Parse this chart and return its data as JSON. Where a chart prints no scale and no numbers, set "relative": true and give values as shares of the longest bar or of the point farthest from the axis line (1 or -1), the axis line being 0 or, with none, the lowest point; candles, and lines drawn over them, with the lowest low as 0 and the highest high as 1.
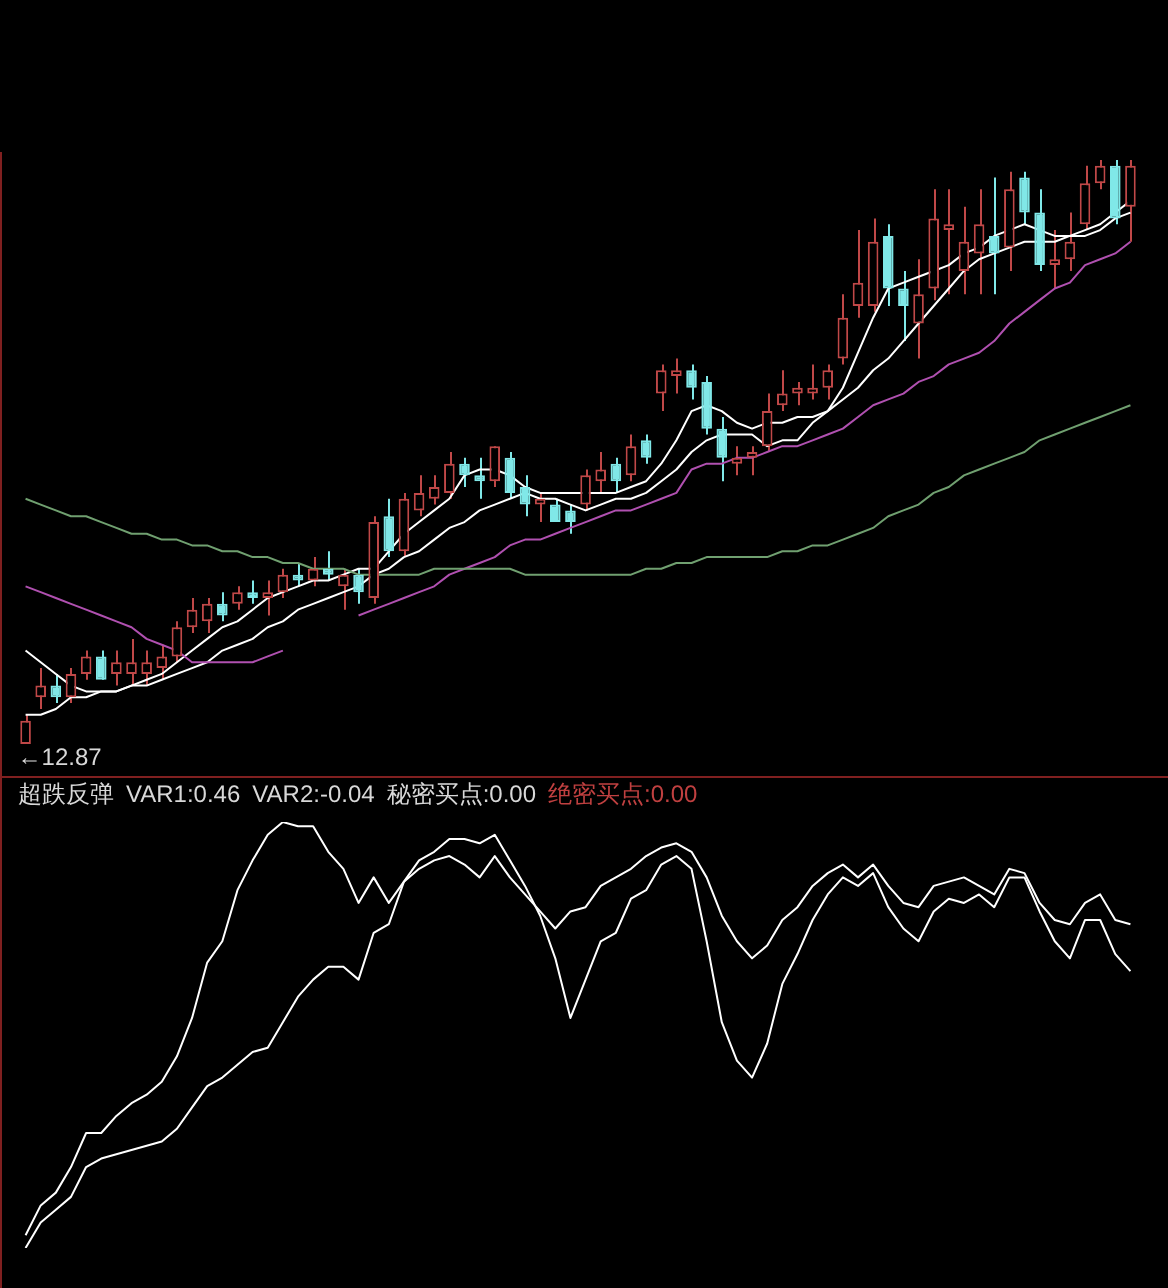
{
  "chart_data": [
    {
      "type": "candlestick",
      "relative": true,
      "categories": [
        null,
        null,
        null,
        null,
        null,
        null,
        null,
        null,
        null,
        null,
        null,
        null,
        null,
        null,
        null,
        null,
        null,
        null,
        null,
        null,
        null,
        null,
        null,
        null,
        null,
        null,
        null,
        null,
        null,
        null,
        null,
        null,
        null,
        null,
        null,
        null,
        null,
        null,
        null,
        null,
        null,
        null,
        null,
        null,
        null,
        null,
        null,
        null,
        null,
        null,
        null,
        null,
        null,
        null,
        null,
        null,
        null,
        null,
        null,
        null,
        null,
        null,
        null,
        null,
        null,
        null,
        null,
        null,
        null,
        null,
        null,
        null,
        null,
        null
      ],
      "annotations": [
        "←12.87"
      ],
      "series": [
        {
          "type": "line",
          "color": "#70a070",
          "values": [
            0.42,
            0.41,
            0.4,
            0.39,
            0.39,
            0.38,
            0.37,
            0.36,
            0.36,
            0.35,
            0.35,
            0.34,
            0.34,
            0.33,
            0.33,
            0.32,
            0.32,
            0.31,
            0.31,
            0.3,
            0.3,
            0.3,
            0.29,
            0.29,
            0.29,
            0.29,
            0.29,
            0.3,
            0.3,
            0.3,
            0.3,
            0.3,
            0.3,
            0.29,
            0.29,
            0.29,
            0.29,
            0.29,
            0.29,
            0.29,
            0.29,
            0.3,
            0.3,
            0.31,
            0.31,
            0.32,
            0.32,
            0.32,
            0.32,
            0.32,
            0.33,
            0.33,
            0.34,
            0.34,
            0.35,
            0.36,
            0.37,
            0.39,
            0.4,
            0.41,
            0.43,
            0.44,
            0.46,
            0.47,
            0.48,
            0.49,
            0.5,
            0.52,
            0.53,
            0.54,
            0.55,
            0.56,
            0.57,
            0.58
          ]
        },
        {
          "type": "line",
          "color": "#b050b0",
          "values": [
            0.27,
            0.26,
            0.25,
            0.24,
            0.23,
            0.22,
            0.21,
            0.2,
            0.18,
            0.17,
            0.16,
            0.14,
            0.14,
            0.14,
            0.14,
            0.14,
            0.15,
            0.16,
            null,
            null,
            null,
            null,
            0.22,
            0.23,
            0.24,
            0.25,
            0.26,
            0.27,
            0.29,
            0.3,
            0.31,
            0.32,
            0.34,
            0.35,
            0.35,
            0.36,
            0.37,
            0.38,
            0.39,
            0.4,
            0.4,
            0.41,
            0.42,
            0.43,
            0.47,
            0.48,
            0.48,
            0.49,
            0.49,
            0.5,
            0.51,
            0.51,
            0.52,
            0.53,
            0.54,
            0.56,
            0.58,
            0.59,
            0.6,
            0.62,
            0.63,
            0.65,
            0.66,
            0.67,
            0.69,
            0.72,
            0.74,
            0.76,
            0.78,
            0.79,
            0.82,
            0.83,
            0.84,
            0.86
          ]
        },
        {
          "type": "line",
          "color": "#ffffff",
          "values": [
            0.16,
            0.14,
            0.12,
            0.1,
            0.09,
            0.09,
            0.09,
            0.1,
            0.11,
            0.12,
            0.14,
            0.16,
            0.18,
            0.2,
            0.21,
            0.23,
            0.25,
            0.26,
            0.27,
            0.28,
            0.28,
            0.29,
            0.3,
            0.3,
            0.33,
            0.36,
            0.38,
            0.4,
            0.42,
            0.46,
            0.47,
            0.47,
            0.46,
            0.44,
            0.43,
            0.43,
            0.43,
            0.43,
            0.43,
            0.43,
            0.44,
            0.45,
            0.48,
            0.52,
            0.57,
            0.58,
            0.57,
            0.55,
            0.54,
            0.55,
            0.55,
            0.56,
            0.56,
            0.57,
            0.61,
            0.67,
            0.73,
            0.78,
            0.79,
            0.8,
            0.81,
            0.82,
            0.84,
            0.85,
            0.87,
            0.88,
            0.89,
            0.88,
            0.87,
            0.87,
            0.88,
            0.89,
            0.91,
            0.93
          ]
        },
        {
          "type": "line",
          "color": "#ffffff",
          "values": [
            0.05,
            0.05,
            0.06,
            0.08,
            0.08,
            0.09,
            0.09,
            0.1,
            0.1,
            0.11,
            0.12,
            0.13,
            0.14,
            0.16,
            0.17,
            0.18,
            0.2,
            0.21,
            0.23,
            0.24,
            0.25,
            0.26,
            0.27,
            0.29,
            0.3,
            0.32,
            0.33,
            0.35,
            0.37,
            0.38,
            0.4,
            0.41,
            0.42,
            0.43,
            0.42,
            0.42,
            0.41,
            0.4,
            0.41,
            0.42,
            0.42,
            0.43,
            0.45,
            0.47,
            0.5,
            0.52,
            0.53,
            0.53,
            0.53,
            0.51,
            0.52,
            0.52,
            0.55,
            0.57,
            0.59,
            0.61,
            0.64,
            0.66,
            0.69,
            0.72,
            0.75,
            0.78,
            0.81,
            0.83,
            0.84,
            0.85,
            0.86,
            0.86,
            0.86,
            0.87,
            0.87,
            0.88,
            0.9,
            0.91
          ]
        },
        {
          "type": "candlestick",
          "colors": [
            "#c04848",
            "#c04848",
            "#80e8e8",
            "#c04848",
            "#c04848",
            "#80e8e8",
            "#c04848",
            "#c04848",
            "#c04848",
            "#c04848",
            "#c04848",
            "#c04848",
            "#c04848",
            "#80e8e8",
            "#c04848",
            "#80e8e8",
            "#c04848",
            "#c04848",
            "#80e8e8",
            "#c04848",
            "#80e8e8",
            "#c04848",
            "#80e8e8",
            "#c04848",
            "#80e8e8",
            "#c04848",
            "#c04848",
            "#c04848",
            "#c04848",
            "#80e8e8",
            "#80e8e8",
            "#c04848",
            "#80e8e8",
            "#80e8e8",
            "#c04848",
            "#80e8e8",
            "#80e8e8",
            "#c04848",
            "#c04848",
            "#80e8e8",
            "#c04848",
            "#80e8e8",
            "#c04848",
            "#c04848",
            "#80e8e8",
            "#80e8e8",
            "#80e8e8",
            "#c04848",
            "#c04848",
            "#c04848",
            "#c04848",
            "#c04848",
            "#c04848",
            "#c04848",
            "#c04848",
            "#c04848",
            "#c04848",
            "#80e8e8",
            "#80e8e8",
            "#c04848",
            "#c04848",
            "#c04848",
            "#c04848",
            "#c04848",
            "#80e8e8",
            "#c04848",
            "#80e8e8",
            "#80e8e8",
            "#c04848",
            "#c04848",
            "#c04848",
            "#c04848",
            "#80e8e8",
            "#c04848"
          ],
          "ohlc": [
            [
              0,
              0.05,
              0,
              0.04
            ],
            [
              0.08,
              0.13,
              0.06,
              0.1
            ],
            [
              0.1,
              0.12,
              0.07,
              0.08
            ],
            [
              0.08,
              0.13,
              0.07,
              0.12
            ],
            [
              0.12,
              0.16,
              0.11,
              0.15
            ],
            [
              0.15,
              0.16,
              0.11,
              0.11
            ],
            [
              0.12,
              0.16,
              0.1,
              0.14
            ],
            [
              0.12,
              0.18,
              0.1,
              0.14
            ],
            [
              0.12,
              0.16,
              0.1,
              0.14
            ],
            [
              0.13,
              0.17,
              0.11,
              0.15
            ],
            [
              0.15,
              0.21,
              0.14,
              0.2
            ],
            [
              0.2,
              0.25,
              0.19,
              0.23
            ],
            [
              0.21,
              0.25,
              0.19,
              0.24
            ],
            [
              0.24,
              0.26,
              0.21,
              0.22
            ],
            [
              0.24,
              0.27,
              0.23,
              0.26
            ],
            [
              0.26,
              0.28,
              0.24,
              0.25
            ],
            [
              0.25,
              0.28,
              0.22,
              0.26
            ],
            [
              0.26,
              0.3,
              0.25,
              0.29
            ],
            [
              0.29,
              0.31,
              0.27,
              0.28
            ],
            [
              0.28,
              0.32,
              0.27,
              0.3
            ],
            [
              0.3,
              0.33,
              0.28,
              0.29
            ],
            [
              0.27,
              0.3,
              0.23,
              0.29
            ],
            [
              0.29,
              0.3,
              0.24,
              0.26
            ],
            [
              0.25,
              0.39,
              0.24,
              0.38
            ],
            [
              0.39,
              0.42,
              0.32,
              0.33
            ],
            [
              0.33,
              0.43,
              0.32,
              0.42
            ],
            [
              0.4,
              0.46,
              0.39,
              0.43
            ],
            [
              0.42,
              0.46,
              0.41,
              0.44
            ],
            [
              0.43,
              0.5,
              0.42,
              0.48
            ],
            [
              0.48,
              0.49,
              0.44,
              0.46
            ],
            [
              0.46,
              0.49,
              0.42,
              0.45
            ],
            [
              0.45,
              0.51,
              0.44,
              0.51
            ],
            [
              0.49,
              0.5,
              0.42,
              0.43
            ],
            [
              0.44,
              0.46,
              0.39,
              0.41
            ],
            [
              0.41,
              0.43,
              0.38,
              0.42
            ],
            [
              0.41,
              0.42,
              0.38,
              0.38
            ],
            [
              0.4,
              0.41,
              0.36,
              0.38
            ],
            [
              0.41,
              0.47,
              0.4,
              0.46
            ],
            [
              0.45,
              0.5,
              0.43,
              0.47
            ],
            [
              0.48,
              0.49,
              0.43,
              0.45
            ],
            [
              0.46,
              0.53,
              0.45,
              0.51
            ],
            [
              0.52,
              0.53,
              0.48,
              0.49
            ],
            [
              0.6,
              0.65,
              0.57,
              0.64
            ],
            [
              0.63,
              0.66,
              0.6,
              0.64
            ],
            [
              0.64,
              0.65,
              0.59,
              0.61
            ],
            [
              0.62,
              0.63,
              0.53,
              0.54
            ],
            [
              0.54,
              0.56,
              0.45,
              0.49
            ],
            [
              0.48,
              0.51,
              0.46,
              0.49
            ],
            [
              0.49,
              0.51,
              0.46,
              0.5
            ],
            [
              0.51,
              0.6,
              0.5,
              0.57
            ],
            [
              0.58,
              0.64,
              0.57,
              0.6
            ],
            [
              0.6,
              0.62,
              0.58,
              0.61
            ],
            [
              0.6,
              0.65,
              0.59,
              0.61
            ],
            [
              0.61,
              0.65,
              0.59,
              0.64
            ],
            [
              0.66,
              0.77,
              0.65,
              0.73
            ],
            [
              0.75,
              0.88,
              0.73,
              0.79
            ],
            [
              0.75,
              0.9,
              0.74,
              0.86
            ],
            [
              0.87,
              0.89,
              0.75,
              0.78
            ],
            [
              0.78,
              0.81,
              0.69,
              0.75
            ],
            [
              0.72,
              0.83,
              0.66,
              0.77
            ],
            [
              0.78,
              0.95,
              0.76,
              0.9
            ],
            [
              0.88,
              0.95,
              0.77,
              0.89
            ],
            [
              0.81,
              0.92,
              0.77,
              0.86
            ],
            [
              0.84,
              0.95,
              0.77,
              0.89
            ],
            [
              0.87,
              0.97,
              0.77,
              0.84
            ],
            [
              0.85,
              0.98,
              0.81,
              0.95
            ],
            [
              0.97,
              0.98,
              0.89,
              0.91
            ],
            [
              0.91,
              0.95,
              0.81,
              0.82
            ],
            [
              0.82,
              0.88,
              0.78,
              0.83
            ],
            [
              0.83,
              0.91,
              0.81,
              0.86
            ],
            [
              0.89,
              0.99,
              0.88,
              0.96
            ],
            [
              0.96,
              1,
              0.95,
              0.99
            ],
            [
              0.99,
              1,
              0.89,
              0.9
            ],
            [
              0.92,
              1,
              0.86,
              0.99
            ]
          ]
        }
      ]
    },
    {
      "type": "line",
      "relative": true,
      "title": "超跌反弹",
      "annotations": [
        "VAR1:0.46",
        "VAR2:-0.04",
        "秘密买点:0.00",
        "绝密买点:0.00"
      ],
      "categories": [
        null,
        null,
        null,
        null,
        null,
        null,
        null,
        null,
        null,
        null,
        null,
        null,
        null,
        null,
        null,
        null,
        null,
        null,
        null,
        null,
        null,
        null,
        null,
        null,
        null,
        null,
        null,
        null,
        null,
        null,
        null,
        null,
        null,
        null,
        null,
        null,
        null,
        null,
        null,
        null,
        null,
        null,
        null,
        null,
        null,
        null,
        null,
        null,
        null,
        null,
        null,
        null,
        null,
        null,
        null,
        null,
        null,
        null,
        null,
        null,
        null,
        null,
        null,
        null,
        null,
        null,
        null,
        null,
        null,
        null,
        null,
        null,
        null,
        null
      ],
      "series": [
        {
          "color": "#ffffff",
          "values": [
            0.03,
            0.1,
            0.13,
            0.19,
            0.27,
            0.27,
            0.31,
            0.34,
            0.36,
            0.39,
            0.45,
            0.54,
            0.67,
            0.72,
            0.84,
            0.91,
            0.97,
            1,
            0.99,
            0.99,
            0.93,
            0.89,
            0.81,
            0.87,
            0.81,
            0.86,
            0.89,
            0.91,
            0.92,
            0.9,
            0.87,
            0.92,
            0.87,
            0.83,
            0.79,
            0.75,
            0.79,
            0.8,
            0.85,
            0.87,
            0.89,
            0.92,
            0.94,
            0.95,
            0.93,
            0.87,
            0.78,
            0.72,
            0.68,
            0.71,
            0.77,
            0.8,
            0.85,
            0.88,
            0.9,
            0.87,
            0.9,
            0.85,
            0.81,
            0.8,
            0.85,
            0.86,
            0.87,
            0.85,
            0.83,
            0.89,
            0.88,
            0.81,
            0.77,
            0.76,
            0.81,
            0.83,
            0.77,
            0.76
          ]
        },
        {
          "color": "#ffffff",
          "values": [
            0,
            0.06,
            0.09,
            0.12,
            0.19,
            0.21,
            0.22,
            0.23,
            0.24,
            0.25,
            0.28,
            0.33,
            0.38,
            0.4,
            0.43,
            0.46,
            0.47,
            0.53,
            0.59,
            0.63,
            0.66,
            0.66,
            0.63,
            0.74,
            0.76,
            0.86,
            0.91,
            0.93,
            0.96,
            0.96,
            0.95,
            0.97,
            0.91,
            0.85,
            0.78,
            0.68,
            0.54,
            0.63,
            0.72,
            0.74,
            0.82,
            0.84,
            0.9,
            0.92,
            0.89,
            0.72,
            0.53,
            0.44,
            0.4,
            0.48,
            0.62,
            0.69,
            0.77,
            0.83,
            0.87,
            0.85,
            0.88,
            0.8,
            0.75,
            0.72,
            0.79,
            0.82,
            0.81,
            0.83,
            0.8,
            0.87,
            0.87,
            0.79,
            0.72,
            0.68,
            0.77,
            0.77,
            0.69,
            0.65
          ]
        }
      ]
    }
  ]
}
